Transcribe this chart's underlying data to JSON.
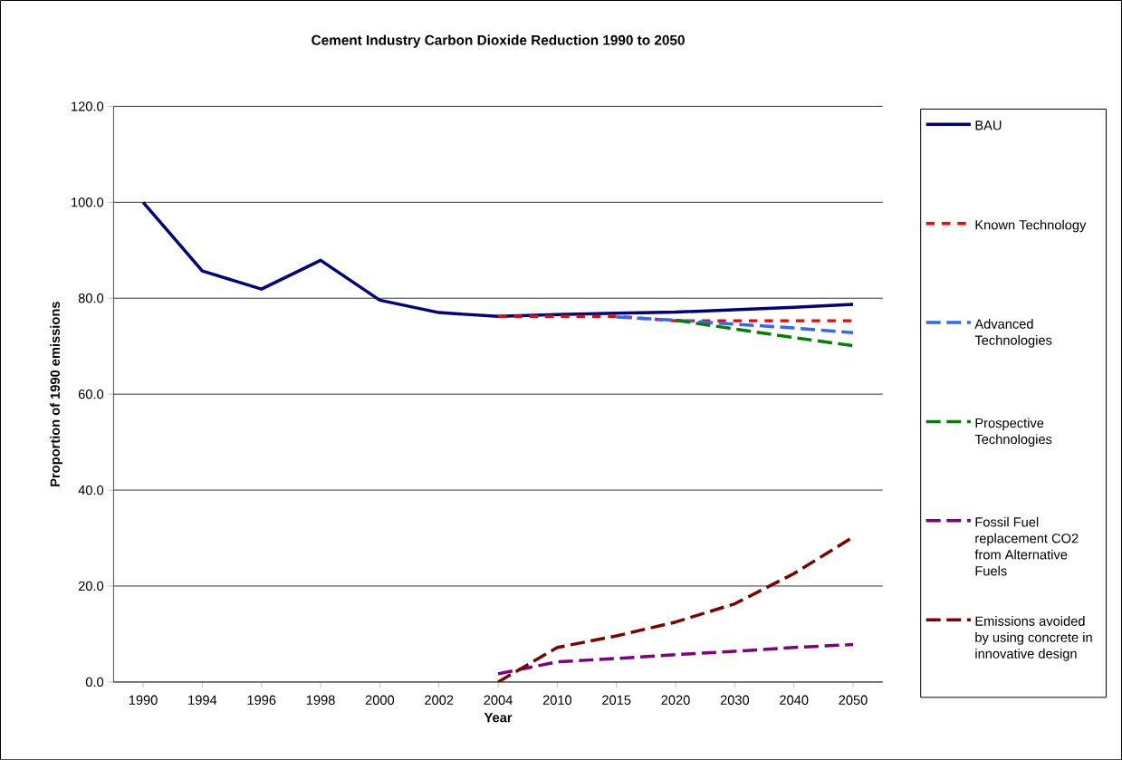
{
  "chart_data": {
    "type": "line",
    "title": "Cement Industry Carbon Dioxide Reduction 1990 to 2050",
    "xlabel": "Year",
    "ylabel": "Proportion of 1990 emissions",
    "categories": [
      "1990",
      "1994",
      "1996",
      "1998",
      "2000",
      "2002",
      "2004",
      "2010",
      "2015",
      "2020",
      "2030",
      "2040",
      "2050"
    ],
    "series": [
      {
        "name": "BAU",
        "color": "#000080",
        "line_style": "solid",
        "values": [
          100.0,
          85.7,
          81.9,
          87.9,
          79.6,
          77.0,
          76.2,
          76.6,
          76.9,
          77.1,
          77.6,
          78.1,
          78.7
        ]
      },
      {
        "name": "Known Technology",
        "color": "#ff0000",
        "line_style": "dotted",
        "values": [
          null,
          null,
          null,
          null,
          null,
          null,
          76.2,
          76.2,
          76.2,
          75.3,
          75.3,
          75.3,
          75.3
        ]
      },
      {
        "name": "Advanced Technologies",
        "color": "#3366ff",
        "line_style": "dashed",
        "values": [
          null,
          null,
          null,
          null,
          null,
          null,
          null,
          null,
          76.1,
          75.4,
          74.6,
          73.8,
          72.8
        ]
      },
      {
        "name": "Prospective Technologies",
        "color": "#008000",
        "line_style": "dashed",
        "values": [
          null,
          null,
          null,
          null,
          null,
          null,
          null,
          null,
          null,
          75.4,
          73.6,
          71.8,
          70.1
        ]
      },
      {
        "name": "Fossil Fuel replacement CO2 from Alternative Fuels",
        "color": "#800080",
        "line_style": "dashed",
        "values": [
          null,
          null,
          null,
          null,
          null,
          null,
          1.7,
          4.2,
          4.9,
          5.7,
          6.4,
          7.2,
          7.8
        ]
      },
      {
        "name": "Emissions avoided by using concrete in innovative design",
        "color": "#800000",
        "line_style": "dashed",
        "values": [
          null,
          null,
          null,
          null,
          null,
          null,
          0.0,
          7.2,
          9.6,
          12.5,
          16.3,
          22.6,
          30.2
        ]
      }
    ],
    "ylim": [
      0,
      120
    ],
    "yticks": [
      {
        "value": 0,
        "label": "0.0"
      },
      {
        "value": 20,
        "label": "20.0"
      },
      {
        "value": 40,
        "label": "40.0"
      },
      {
        "value": 60,
        "label": "60.0"
      },
      {
        "value": 80,
        "label": "80.0"
      },
      {
        "value": 100,
        "label": "100.0"
      },
      {
        "value": 120,
        "label": "120.0"
      }
    ],
    "grid": "y",
    "legend": "right",
    "marker": "none"
  }
}
